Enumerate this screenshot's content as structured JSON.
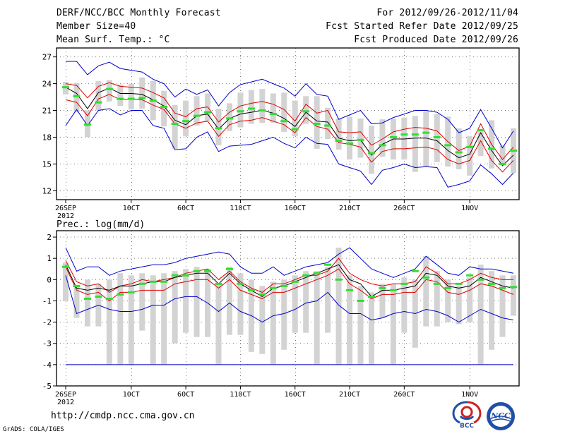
{
  "header": {
    "title": "DERF/NCC/BCC Monthly Forecast",
    "member_size": "Member Size=40",
    "variable": "Mean Surf. Temp.: °C",
    "forecast_period": "For 2012/09/26-2012/11/04",
    "fcst_started": "Fcst Started Refer Date 2012/09/25",
    "fcst_produced": "Fcst Produced Date 2012/09/26"
  },
  "footer": {
    "url": "http://cmdp.ncc.cma.gov.cn",
    "credit": "GrADS: COLA/IGES",
    "logo_bcc": "BCC",
    "logo_ncc": "NCC"
  },
  "colors": {
    "envelope": "#0000cc",
    "spread": "#dd0000",
    "mean": "#000000",
    "box": "#d3d3d3",
    "median": "#33dd33",
    "grid": "#777777"
  },
  "chart_data": [
    {
      "type": "line",
      "title": "Mean Surf. Temp.: °C",
      "days": 40,
      "x_tick_labels": [
        "26SEP",
        "10CT",
        "60CT",
        "110CT",
        "160CT",
        "210CT",
        "260CT",
        "1NOV"
      ],
      "x_sublabel": "2012",
      "y_ticks": [
        12,
        15,
        18,
        21,
        24,
        27
      ],
      "ylim": [
        11,
        28
      ],
      "series": [
        {
          "name": "max",
          "values": [
            26.5,
            26.5,
            25,
            26,
            26.4,
            25.7,
            25.5,
            25.3,
            24.5,
            24,
            22.5,
            23.4,
            22.8,
            23.3,
            21.5,
            23,
            23.9,
            24.2,
            24.5,
            24,
            23.5,
            22.6,
            24,
            22.8,
            22.6,
            20,
            20.5,
            21,
            19.5,
            19.6,
            20.2,
            20.6,
            21,
            21,
            20.8,
            20,
            18.5,
            19,
            21.1,
            19,
            16.8,
            18.7
          ]
        },
        {
          "name": "upper",
          "values": [
            24,
            23.8,
            22.4,
            23.7,
            24.1,
            23.7,
            23.6,
            23.5,
            23,
            22.4,
            20.7,
            20.3,
            21.2,
            21.4,
            19.7,
            20.8,
            21.5,
            21.8,
            22,
            21.7,
            21.1,
            19.8,
            21.7,
            20.7,
            21,
            18.6,
            18.5,
            18.6,
            17.1,
            17.8,
            18.6,
            18.9,
            19.1,
            19,
            18.7,
            17.5,
            16.5,
            17,
            19.5,
            17.2,
            15.5,
            16.9
          ]
        },
        {
          "name": "mean",
          "values": [
            23.6,
            22.9,
            21.2,
            23,
            23.5,
            22.9,
            22.9,
            22.8,
            22.2,
            21.5,
            19.9,
            19.4,
            20.4,
            20.6,
            18.9,
            20.1,
            20.6,
            20.8,
            21,
            20.7,
            20.1,
            19.2,
            20.8,
            19.8,
            19.7,
            17.9,
            17.6,
            17.7,
            16,
            17.2,
            17.8,
            17.8,
            17.9,
            17.9,
            17.6,
            16.5,
            15.7,
            16.1,
            18.5,
            16.5,
            14.8,
            16
          ]
        },
        {
          "name": "lower",
          "values": [
            22.2,
            21.9,
            20.4,
            22.3,
            22.8,
            22.2,
            22.3,
            22.2,
            21.6,
            21.1,
            19.5,
            19,
            19.6,
            19.8,
            18.1,
            19.4,
            19.8,
            19.9,
            20.2,
            19.8,
            19.4,
            18.5,
            20.2,
            19.2,
            18.9,
            17.4,
            17.2,
            16.9,
            15.2,
            16.4,
            16.7,
            16.7,
            16.8,
            16.9,
            16.6,
            15.5,
            15,
            15.4,
            17.6,
            15.4,
            14.1,
            15.4
          ]
        },
        {
          "name": "min",
          "values": [
            19.3,
            21.1,
            19.3,
            21,
            21.2,
            20.5,
            21,
            21,
            19.3,
            19,
            16.6,
            16.7,
            18,
            18.6,
            16.4,
            17,
            17.1,
            17.2,
            17.6,
            18,
            17.3,
            16.8,
            18,
            17.3,
            17.2,
            15,
            14.6,
            14.2,
            12.7,
            14.3,
            14.6,
            15,
            14.6,
            14.7,
            14.6,
            12.4,
            12.7,
            13.1,
            14.9,
            13.9,
            12.7,
            14
          ]
        }
      ],
      "boxes": [
        [
          22.8,
          24.2
        ],
        [
          20.8,
          24.1
        ],
        [
          18,
          21
        ],
        [
          21,
          24.3
        ],
        [
          22,
          24.4
        ],
        [
          21.5,
          23.9
        ],
        [
          21.1,
          24
        ],
        [
          21.2,
          24.7
        ],
        [
          19.9,
          24.3
        ],
        [
          19.2,
          23.2
        ],
        [
          16.7,
          21.6
        ],
        [
          18.1,
          22.1
        ],
        [
          19.3,
          22.6
        ],
        [
          19.8,
          22.9
        ],
        [
          17.1,
          21.2
        ],
        [
          18.7,
          21.8
        ],
        [
          19.1,
          23
        ],
        [
          19.5,
          23.3
        ],
        [
          19.6,
          23.4
        ],
        [
          19.6,
          22.9
        ],
        [
          18.6,
          23
        ],
        [
          18.1,
          22.1
        ],
        [
          19.5,
          22.6
        ],
        [
          16.7,
          22.6
        ],
        [
          17.8,
          21.3
        ],
        [
          16.6,
          20.1
        ],
        [
          15.5,
          20.3
        ],
        [
          15.7,
          20.1
        ],
        [
          13.9,
          19.3
        ],
        [
          15.8,
          20
        ],
        [
          15.5,
          20.1
        ],
        [
          15.5,
          20.2
        ],
        [
          14.1,
          20.4
        ],
        [
          14.7,
          20.9
        ],
        [
          15.2,
          20.6
        ],
        [
          14.7,
          20.3
        ],
        [
          14.4,
          19
        ],
        [
          13.7,
          18.1
        ],
        [
          15.9,
          18.9
        ],
        [
          14.5,
          19.9
        ],
        [
          15.1,
          17.1
        ],
        [
          14,
          19
        ]
      ],
      "medians": [
        23.6,
        22.6,
        19.4,
        21.9,
        23.4,
        22.3,
        22.3,
        22.4,
        22.1,
        21.4,
        19.5,
        19.8,
        20.4,
        20.8,
        19,
        20.1,
        20.9,
        21.2,
        21,
        20.6,
        19.8,
        18.9,
        20.9,
        19.5,
        19.3,
        17.6,
        17.3,
        17.7,
        16.2,
        17.1,
        18,
        18.3,
        18.3,
        18.5,
        18,
        17.1,
        16.3,
        16.9,
        18.8,
        16.7,
        15,
        16.5
      ]
    },
    {
      "type": "line",
      "title": "Prec.: log(mm/d)",
      "days": 40,
      "x_tick_labels": [
        "26SEP",
        "10CT",
        "60CT",
        "110CT",
        "160CT",
        "210CT",
        "260CT",
        "1NOV"
      ],
      "x_sublabel": "2012",
      "y_ticks": [
        -5,
        -4,
        -3,
        -2,
        -1,
        0,
        1,
        2
      ],
      "ylim": [
        -5,
        2.3
      ],
      "series": [
        {
          "name": "max",
          "values": [
            1.5,
            0.4,
            0.6,
            0.6,
            0.2,
            0.4,
            0.5,
            0.6,
            0.7,
            0.7,
            0.8,
            1,
            1.1,
            1.2,
            1.3,
            1.2,
            0.6,
            0.3,
            0.3,
            0.6,
            0.2,
            0.4,
            0.6,
            0.7,
            0.8,
            1.2,
            1.5,
            1,
            0.5,
            0.3,
            0.1,
            0.3,
            0.5,
            1.1,
            0.7,
            0.3,
            0.2,
            0.6,
            0.5,
            0.5,
            0.4,
            0.3
          ]
        },
        {
          "name": "upper",
          "values": [
            0.9,
            -0.1,
            -0.3,
            -0.2,
            -0.6,
            -0.3,
            -0.2,
            0,
            -0.1,
            0,
            0.1,
            0.3,
            0.4,
            0.5,
            0,
            0.4,
            -0.1,
            -0.4,
            -0.6,
            -0.2,
            -0.2,
            0,
            0.2,
            0.2,
            0.4,
            1,
            0.3,
            0,
            -0.2,
            -0.3,
            -0.2,
            -0.2,
            -0.1,
            0.6,
            0.3,
            -0.2,
            -0.2,
            0,
            0.3,
            0.1,
            0,
            0
          ]
        },
        {
          "name": "mean",
          "values": [
            0.7,
            -0.4,
            -0.5,
            -0.4,
            -0.5,
            -0.3,
            -0.3,
            -0.2,
            -0.1,
            -0.1,
            0.1,
            0.2,
            0.3,
            0.3,
            -0.2,
            0.3,
            -0.2,
            -0.5,
            -0.8,
            -0.4,
            -0.3,
            -0.1,
            0.1,
            0.3,
            0.5,
            0.7,
            0,
            -0.2,
            -0.8,
            -0.5,
            -0.5,
            -0.4,
            -0.3,
            0.3,
            0.2,
            -0.3,
            -0.4,
            -0.3,
            0.1,
            -0.1,
            -0.3,
            -0.4
          ]
        },
        {
          "name": "lower",
          "values": [
            0.6,
            -0.5,
            -0.7,
            -0.6,
            -1,
            -0.6,
            -0.6,
            -0.5,
            -0.5,
            -0.5,
            -0.2,
            -0.1,
            0,
            0,
            -0.4,
            0,
            -0.5,
            -0.7,
            -0.9,
            -0.6,
            -0.6,
            -0.4,
            -0.2,
            0,
            0.2,
            0.5,
            -0.2,
            -0.5,
            -0.9,
            -0.7,
            -0.7,
            -0.6,
            -0.6,
            0,
            -0.1,
            -0.6,
            -0.7,
            -0.5,
            -0.2,
            -0.3,
            -0.5,
            -0.7
          ]
        },
        {
          "name": "min",
          "values": [
            0.2,
            -1.6,
            -1.4,
            -1.2,
            -1.4,
            -1.5,
            -1.5,
            -1.4,
            -1.2,
            -1.2,
            -0.9,
            -0.8,
            -0.8,
            -1.1,
            -1.5,
            -1.1,
            -1.5,
            -1.7,
            -2,
            -1.7,
            -1.6,
            -1.4,
            -1.1,
            -1,
            -0.6,
            -1.2,
            -1.6,
            -1.6,
            -1.9,
            -1.8,
            -1.6,
            -1.5,
            -1.6,
            -1.4,
            -1.5,
            -1.7,
            -2,
            -1.7,
            -1.4,
            -1.6,
            -1.8,
            -1.9
          ]
        }
      ],
      "envelope_floor": -4,
      "boxes": [
        [
          -1,
          0.8
        ],
        [
          -1.8,
          -0.3
        ],
        [
          -2.2,
          0
        ],
        [
          -2.2,
          -0.2
        ],
        [
          -4,
          0
        ],
        [
          -4,
          0.3
        ],
        [
          -4,
          0.2
        ],
        [
          -2.4,
          0.3
        ],
        [
          -4,
          0.2
        ],
        [
          -4,
          0.3
        ],
        [
          -3,
          0.4
        ],
        [
          -2.5,
          0.5
        ],
        [
          -2.7,
          0.6
        ],
        [
          -2.7,
          0.5
        ],
        [
          -4,
          -0.2
        ],
        [
          -2.6,
          0.6
        ],
        [
          -2.6,
          0.3
        ],
        [
          -3.4,
          0
        ],
        [
          -3.5,
          -0.3
        ],
        [
          -4,
          -0.1
        ],
        [
          -3.3,
          0
        ],
        [
          -2.5,
          0.2
        ],
        [
          -2.5,
          0.4
        ],
        [
          -4,
          0.4
        ],
        [
          -2.5,
          0.6
        ],
        [
          -4,
          1.5
        ],
        [
          -4,
          0.2
        ],
        [
          -4,
          -0.3
        ],
        [
          -4,
          -0.6
        ],
        [
          -1.8,
          -0.2
        ],
        [
          -4,
          -0.2
        ],
        [
          -2.5,
          0.1
        ],
        [
          -3.2,
          0
        ],
        [
          -2.2,
          1.1
        ],
        [
          -2.2,
          0.4
        ],
        [
          -2,
          0
        ],
        [
          -2.1,
          -0.3
        ],
        [
          -2,
          0.1
        ],
        [
          -4,
          0.7
        ],
        [
          -3.3,
          0.4
        ],
        [
          -2.7,
          0.2
        ],
        [
          -1.7,
          0.2
        ]
      ],
      "medians": [
        0.6,
        -0.3,
        -0.9,
        -0.8,
        -0.9,
        -0.7,
        -0.6,
        -0.2,
        -0.1,
        -0.1,
        0.2,
        0.2,
        0.4,
        0.4,
        -0.2,
        0.5,
        -0.2,
        -0.5,
        -0.7,
        -0.4,
        -0.3,
        -0.1,
        0.2,
        0.3,
        0.7,
        0,
        -0.5,
        -1,
        -0.8,
        -0.4,
        -0.5,
        -0.2,
        0.4,
        0.1,
        -0.2,
        -0.4,
        -0.2,
        0.2,
        0,
        -0.2,
        -0.4,
        -0.35
      ]
    }
  ]
}
